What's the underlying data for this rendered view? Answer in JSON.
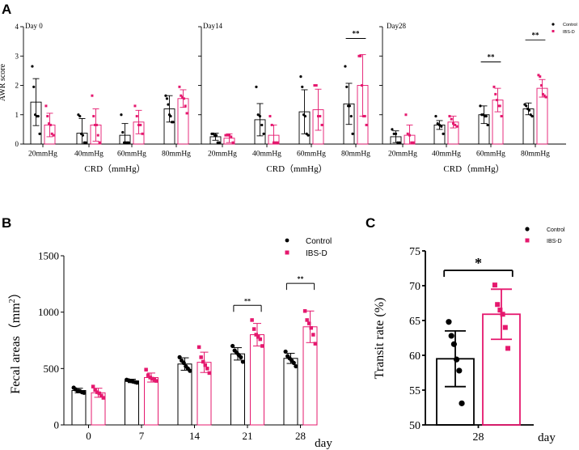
{
  "colors": {
    "control": "#000000",
    "ibs": "#e5186e"
  },
  "chart_data": [
    {
      "panel": "A",
      "type": "bar",
      "ylabel": "AWR score",
      "xlabel": "CRD（mmHg）",
      "ylim": [
        0,
        4
      ],
      "yticks": [
        0,
        1,
        2,
        3,
        4
      ],
      "legend": [
        "Control",
        "IBS-D"
      ],
      "categories": [
        "20mmHg",
        "40mmHg",
        "60mmHg",
        "80mmHg"
      ],
      "subplots": [
        {
          "label": "Day 0",
          "series": [
            {
              "name": "Control",
              "values": [
                1.43,
                0.37,
                0.3,
                1.2
              ],
              "err": [
                0.8,
                0.5,
                0.4,
                0.45
              ],
              "points": [
                [
                  2.65,
                  1.95,
                  1.0,
                  0.95,
                  0.95,
                  0.35
                ],
                [
                  1.0,
                  0.95,
                  0.35,
                  0.3,
                  0.05,
                  0.05
                ],
                [
                  1.0,
                  0.4,
                  0.05,
                  0.05,
                  0.05,
                  0.05
                ],
                [
                  1.65,
                  1.55,
                  1.35,
                  1.0,
                  0.95,
                  0.75,
                  0.75
                ]
              ]
            },
            {
              "name": "IBS-D",
              "values": [
                0.65,
                0.65,
                0.75,
                1.55
              ],
              "err": [
                0.4,
                0.55,
                0.4,
                0.3
              ],
              "points": [
                [
                  1.3,
                  0.95,
                  0.7,
                  0.65,
                  0.35,
                  0.3
                ],
                [
                  1.65,
                  0.95,
                  0.65,
                  0.65,
                  0.3,
                  0.05
                ],
                [
                  1.3,
                  0.95,
                  0.65,
                  0.65,
                  0.35
                ],
                [
                  1.95,
                  1.65,
                  1.6,
                  1.55,
                  1.3,
                  1.05
                ]
              ]
            }
          ],
          "significance": []
        },
        {
          "label": "Day14",
          "series": [
            {
              "name": "Control",
              "values": [
                0.25,
                0.83,
                1.1,
                1.37
              ],
              "err": [
                0.12,
                0.55,
                0.75,
                0.7
              ],
              "points": [
                [
                  0.35,
                  0.35,
                  0.3,
                  0.3,
                  0.05,
                  0.05
                ],
                [
                  1.95,
                  1.0,
                  0.95,
                  0.65,
                  0.35
                ],
                [
                  2.3,
                  1.95,
                  1.0,
                  0.95,
                  0.35,
                  0.3
                ],
                [
                  2.65,
                  1.95,
                  1.3,
                  1.3,
                  0.95,
                  0.35
                ]
              ]
            },
            {
              "name": "IBS-D",
              "values": [
                0.2,
                0.3,
                1.17,
                2.0
              ],
              "err": [
                0.15,
                0.35,
                0.7,
                1.05
              ],
              "points": [
                [
                  0.3,
                  0.3,
                  0.3,
                  0.25,
                  0.05
                ],
                [
                  0.95,
                  0.65,
                  0.05,
                  0.05,
                  0.05
                ],
                [
                  2.0,
                  2.0,
                  0.95,
                  0.95,
                  0.65
                ],
                [
                  3.0,
                  3.0,
                  2.0,
                  0.95,
                  0.95,
                  0.65
                ]
              ]
            }
          ],
          "significance": [
            {
              "category": "80mmHg",
              "text": "**",
              "y": 3.6
            }
          ]
        },
        {
          "label": "Day28",
          "series": [
            {
              "name": "Control",
              "values": [
                0.25,
                0.65,
                1.0,
                1.2
              ],
              "err": [
                0.2,
                0.15,
                0.3,
                0.2
              ],
              "points": [
                [
                  0.5,
                  0.35,
                  0.35,
                  0.05,
                  0.05
                ],
                [
                  0.95,
                  0.7,
                  0.65,
                  0.6,
                  0.35
                ],
                [
                  1.3,
                  1.0,
                  1.0,
                  0.95,
                  0.95,
                  0.65
                ],
                [
                  1.35,
                  1.3,
                  1.2,
                  1.15,
                  1.0,
                  0.95
                ]
              ]
            },
            {
              "name": "IBS-D",
              "values": [
                0.3,
                0.75,
                1.5,
                1.9
              ],
              "err": [
                0.35,
                0.2,
                0.4,
                0.3
              ],
              "points": [
                [
                  1.0,
                  0.35,
                  0.3,
                  0.05,
                  0.05
                ],
                [
                  0.95,
                  0.85,
                  0.7,
                  0.65,
                  0.6
                ],
                [
                  1.95,
                  1.7,
                  1.5,
                  1.3,
                  1.3,
                  0.95
                ],
                [
                  2.35,
                  2.3,
                  2.0,
                  1.7,
                  1.65,
                  1.6
                ]
              ]
            }
          ],
          "significance": [
            {
              "category": "60mmHg",
              "text": "**",
              "y": 2.8
            },
            {
              "category": "80mmHg",
              "text": "**",
              "y": 3.55
            }
          ]
        }
      ]
    },
    {
      "panel": "B",
      "type": "bar",
      "ylabel": "Fecal areas（mm²）",
      "ylabel_main": "Fecal areas（mm",
      "ylabel_sup": "2",
      "ylabel_close": "）",
      "xunit": "day",
      "ylim": [
        0,
        1500
      ],
      "yticks": [
        0,
        500,
        1000,
        1500
      ],
      "categories": [
        "0",
        "7",
        "14",
        "21",
        "28"
      ],
      "legend": [
        "Control",
        "IBS-D"
      ],
      "series": [
        {
          "name": "Control",
          "values": [
            305,
            390,
            540,
            630,
            590
          ],
          "err": [
            20,
            15,
            55,
            55,
            45
          ],
          "points": [
            [
              330,
              315,
              300,
              300,
              290,
              285
            ],
            [
              400,
              395,
              390,
              385,
              380,
              375
            ],
            [
              600,
              570,
              550,
              520,
              500,
              480
            ],
            [
              700,
              660,
              640,
              620,
              600,
              560
            ],
            [
              650,
              610,
              590,
              570,
              550,
              520
            ]
          ]
        },
        {
          "name": "IBS-D",
          "values": [
            285,
            420,
            555,
            800,
            870
          ],
          "err": [
            40,
            40,
            90,
            100,
            140
          ],
          "points": [
            [
              340,
              310,
              290,
              280,
              260,
              240
            ],
            [
              490,
              440,
              420,
              410,
              400,
              390
            ],
            [
              690,
              600,
              560,
              530,
              500,
              460
            ],
            [
              930,
              850,
              800,
              780,
              760,
              700
            ],
            [
              1010,
              930,
              900,
              860,
              800,
              720
            ]
          ]
        }
      ],
      "significance": [
        {
          "category": "21",
          "text": "**",
          "y": 1060
        },
        {
          "category": "28",
          "text": "**",
          "y": 1255
        }
      ]
    },
    {
      "panel": "C",
      "type": "bar",
      "ylabel": "Transit rate (%)",
      "xunit": "day",
      "ylim": [
        50,
        75
      ],
      "yticks": [
        50,
        55,
        60,
        65,
        70,
        75
      ],
      "categories": [
        "28"
      ],
      "legend": [
        "Control",
        "IBS-D"
      ],
      "series": [
        {
          "name": "Control",
          "values": [
            59.5
          ],
          "err": [
            4.0
          ],
          "points": [
            [
              64.8,
              62.8,
              61.6,
              59.4,
              57.8,
              53.1
            ]
          ]
        },
        {
          "name": "IBS-D",
          "values": [
            65.9
          ],
          "err": [
            3.6
          ],
          "points": [
            [
              70.1,
              67.3,
              66.5,
              65.9,
              64.0,
              61.0
            ]
          ]
        }
      ],
      "significance": [
        {
          "category": "28",
          "text": "*",
          "y": 72.2
        }
      ]
    }
  ]
}
